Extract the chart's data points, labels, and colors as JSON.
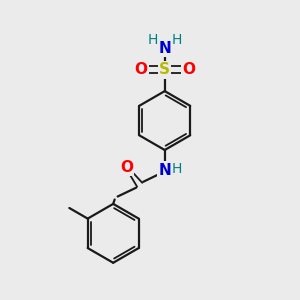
{
  "background_color": "#ebebeb",
  "bond_color": "#1a1a1a",
  "S_color": "#b8b800",
  "O_color": "#ff0000",
  "N_color": "#0000cc",
  "H_color": "#008080",
  "figsize": [
    3.0,
    3.0
  ],
  "dpi": 100,
  "xlim": [
    0,
    10
  ],
  "ylim": [
    0,
    10
  ]
}
